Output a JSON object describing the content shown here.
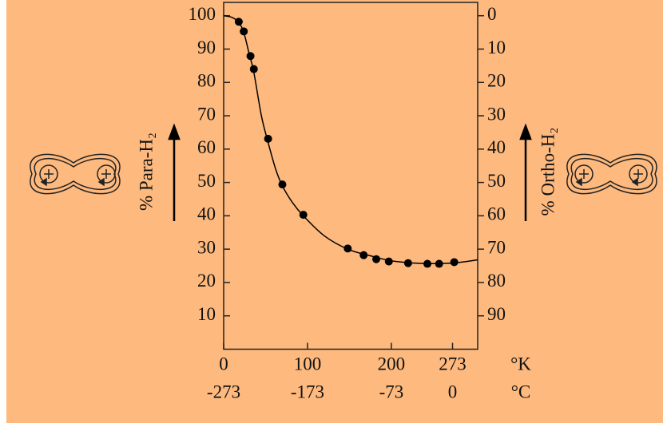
{
  "chart_data": {
    "type": "scatter",
    "xlim": [
      0,
      303
    ],
    "xticks": [
      0,
      100,
      200,
      273
    ],
    "xlabel": "°K",
    "x2lim": [
      -273,
      30
    ],
    "x2ticks": [
      -273,
      -173,
      -73,
      0
    ],
    "x2label": "°C",
    "ylim": [
      0,
      104
    ],
    "yticks": [
      10,
      20,
      30,
      40,
      50,
      60,
      70,
      80,
      90,
      100
    ],
    "ylabel": "% Para-H₂",
    "y2lim": [
      100,
      -4
    ],
    "y2ticks": [
      0,
      10,
      20,
      30,
      40,
      50,
      60,
      70,
      80,
      90
    ],
    "y2label": "% Ortho-H₂",
    "series": [
      {
        "type": "line",
        "color": "#000000",
        "x": [
          0,
          10,
          18,
          24,
          30,
          36,
          45,
          53,
          62,
          70,
          82,
          95,
          120,
          148,
          175,
          200,
          230,
          260,
          280,
          303
        ],
        "values": [
          100,
          99.5,
          98,
          95,
          89,
          83,
          70,
          62,
          54,
          49,
          44,
          40,
          34,
          30,
          28,
          26.5,
          25.8,
          25.7,
          26,
          26.8
        ]
      },
      {
        "type": "scatter",
        "color": "#000000",
        "x": [
          18,
          24,
          32,
          36,
          53,
          70,
          95,
          148,
          167,
          182,
          197,
          220,
          243,
          257,
          275
        ],
        "values": [
          98.2,
          95.3,
          87.9,
          84,
          63.1,
          49.4,
          40.3,
          30.2,
          28.2,
          27,
          26.3,
          25.8,
          25.6,
          25.6,
          26.1
        ]
      }
    ]
  }
}
